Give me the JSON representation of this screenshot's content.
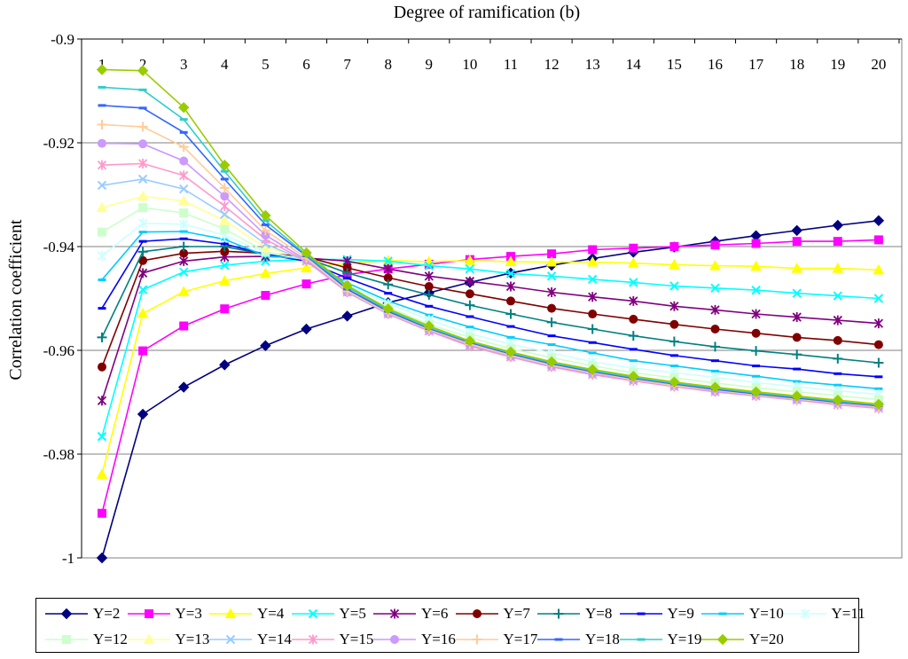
{
  "chart_data": {
    "type": "line",
    "title": "Degree of ramification (b)",
    "xlabel": "Degree of ramification (b)",
    "ylabel": "Correlation coefficient",
    "categories": [
      "1",
      "2",
      "3",
      "4",
      "5",
      "6",
      "7",
      "8",
      "9",
      "10",
      "11",
      "12",
      "13",
      "14",
      "15",
      "16",
      "17",
      "18",
      "19",
      "20"
    ],
    "ylim": [
      -1,
      -0.9
    ],
    "y_ticks": [
      "-0.9",
      "-0.92",
      "-0.94",
      "-0.96",
      "-0.98",
      "-1"
    ],
    "x_axis_position": "top",
    "grid": true,
    "legend_position": "bottom",
    "series": [
      {
        "name": "Y=2",
        "color": "#000080",
        "marker": "diamond",
        "values": [
          -1.0,
          -0.9723,
          -0.9671,
          -0.9628,
          -0.9591,
          -0.9559,
          -0.9534,
          -0.9508,
          -0.9489,
          -0.9469,
          -0.9451,
          -0.9436,
          -0.9423,
          -0.9411,
          -0.9401,
          -0.939,
          -0.9379,
          -0.9369,
          -0.9359,
          -0.935
        ]
      },
      {
        "name": "Y=3",
        "color": "#FF00FF",
        "marker": "square",
        "values": [
          -0.9914,
          -0.9601,
          -0.9553,
          -0.952,
          -0.9494,
          -0.9472,
          -0.9454,
          -0.9443,
          -0.9434,
          -0.9425,
          -0.9419,
          -0.9414,
          -0.9406,
          -0.9403,
          -0.94,
          -0.9397,
          -0.9394,
          -0.939,
          -0.939,
          -0.9387
        ]
      },
      {
        "name": "Y=4",
        "color": "#FFFF00",
        "marker": "triangle",
        "values": [
          -0.9839,
          -0.9529,
          -0.9487,
          -0.9466,
          -0.9452,
          -0.9441,
          -0.9432,
          -0.9427,
          -0.9429,
          -0.9427,
          -0.9429,
          -0.943,
          -0.943,
          -0.9432,
          -0.9435,
          -0.9437,
          -0.9438,
          -0.9442,
          -0.9442,
          -0.9445
        ]
      },
      {
        "name": "Y=5",
        "color": "#00FFFF",
        "marker": "x",
        "values": [
          -0.9766,
          -0.9483,
          -0.9449,
          -0.9436,
          -0.9428,
          -0.9425,
          -0.9425,
          -0.9428,
          -0.9437,
          -0.9443,
          -0.9452,
          -0.9457,
          -0.9463,
          -0.9469,
          -0.9476,
          -0.948,
          -0.9484,
          -0.949,
          -0.9495,
          -0.95
        ]
      },
      {
        "name": "Y=6",
        "color": "#800080",
        "marker": "star",
        "values": [
          -0.9697,
          -0.9451,
          -0.9428,
          -0.942,
          -0.9419,
          -0.9422,
          -0.9428,
          -0.9443,
          -0.9457,
          -0.9467,
          -0.9477,
          -0.9488,
          -0.9497,
          -0.9505,
          -0.9515,
          -0.9522,
          -0.953,
          -0.9536,
          -0.9542,
          -0.9548
        ]
      },
      {
        "name": "Y=7",
        "color": "#800000",
        "marker": "circle",
        "values": [
          -0.9632,
          -0.9427,
          -0.9413,
          -0.9409,
          -0.9413,
          -0.942,
          -0.9441,
          -0.946,
          -0.9477,
          -0.9491,
          -0.9505,
          -0.9519,
          -0.953,
          -0.954,
          -0.955,
          -0.9559,
          -0.9567,
          -0.9575,
          -0.9581,
          -0.9589
        ]
      },
      {
        "name": "Y=8",
        "color": "#008080",
        "marker": "plus",
        "values": [
          -0.9575,
          -0.941,
          -0.94,
          -0.94,
          -0.9415,
          -0.9422,
          -0.9451,
          -0.9473,
          -0.9493,
          -0.9513,
          -0.953,
          -0.9546,
          -0.9559,
          -0.9572,
          -0.9583,
          -0.9593,
          -0.9601,
          -0.9608,
          -0.9616,
          -0.9624
        ]
      },
      {
        "name": "Y=9",
        "color": "#0000FF",
        "marker": "dash",
        "values": [
          -0.9519,
          -0.939,
          -0.9385,
          -0.9395,
          -0.9415,
          -0.9428,
          -0.9461,
          -0.949,
          -0.9515,
          -0.9535,
          -0.9554,
          -0.9572,
          -0.9585,
          -0.9598,
          -0.961,
          -0.962,
          -0.963,
          -0.9636,
          -0.9645,
          -0.9651
        ]
      },
      {
        "name": "Y=10",
        "color": "#00CCFF",
        "marker": "dash",
        "values": [
          -0.9464,
          -0.9372,
          -0.9371,
          -0.9386,
          -0.9418,
          -0.9424,
          -0.947,
          -0.9505,
          -0.9532,
          -0.9555,
          -0.9575,
          -0.9589,
          -0.9605,
          -0.962,
          -0.963,
          -0.964,
          -0.965,
          -0.966,
          -0.9667,
          -0.9674
        ]
      },
      {
        "name": "Y=11",
        "color": "#CCFFFF",
        "marker": "star",
        "values": [
          -0.9418,
          -0.9355,
          -0.9357,
          -0.9378,
          -0.9412,
          -0.9424,
          -0.9474,
          -0.951,
          -0.9541,
          -0.9568,
          -0.9588,
          -0.9605,
          -0.9622,
          -0.9634,
          -0.9643,
          -0.9652,
          -0.9662,
          -0.967,
          -0.9678,
          -0.9685
        ]
      },
      {
        "name": "Y=12",
        "color": "#CCFFCC",
        "marker": "square",
        "values": [
          -0.9372,
          -0.9325,
          -0.9335,
          -0.9366,
          -0.941,
          -0.9426,
          -0.9478,
          -0.9517,
          -0.955,
          -0.9575,
          -0.9597,
          -0.9614,
          -0.963,
          -0.9643,
          -0.9653,
          -0.9663,
          -0.9672,
          -0.968,
          -0.9687,
          -0.9695
        ]
      },
      {
        "name": "Y=13",
        "color": "#FFFF99",
        "marker": "triangle",
        "values": [
          -0.9325,
          -0.9303,
          -0.9312,
          -0.935,
          -0.9402,
          -0.9422,
          -0.9482,
          -0.9522,
          -0.9556,
          -0.9583,
          -0.9604,
          -0.9622,
          -0.9638,
          -0.9651,
          -0.9661,
          -0.967,
          -0.9679,
          -0.9687,
          -0.9695,
          -0.9702
        ]
      },
      {
        "name": "Y=14",
        "color": "#99CCFF",
        "marker": "x",
        "values": [
          -0.9282,
          -0.927,
          -0.9289,
          -0.9338,
          -0.9395,
          -0.9428,
          -0.9485,
          -0.9527,
          -0.9562,
          -0.9589,
          -0.961,
          -0.9628,
          -0.9643,
          -0.9656,
          -0.9667,
          -0.9676,
          -0.9685,
          -0.9693,
          -0.9701,
          -0.9708
        ]
      },
      {
        "name": "Y=15",
        "color": "#FF99CC",
        "marker": "star",
        "values": [
          -0.9243,
          -0.924,
          -0.9263,
          -0.9322,
          -0.9386,
          -0.9428,
          -0.9488,
          -0.953,
          -0.9563,
          -0.9592,
          -0.9613,
          -0.9632,
          -0.9647,
          -0.9659,
          -0.967,
          -0.968,
          -0.9688,
          -0.9696,
          -0.9705,
          -0.9712
        ]
      },
      {
        "name": "Y=16",
        "color": "#CC99FF",
        "marker": "circle",
        "values": [
          -0.9201,
          -0.9202,
          -0.9235,
          -0.9303,
          -0.9378,
          -0.9426,
          -0.9488,
          -0.953,
          -0.9562,
          -0.959,
          -0.9612,
          -0.9631,
          -0.9645,
          -0.9657,
          -0.9669,
          -0.9679,
          -0.9687,
          -0.9695,
          -0.9702,
          -0.971
        ]
      },
      {
        "name": "Y=17",
        "color": "#FFCC99",
        "marker": "plus",
        "values": [
          -0.9165,
          -0.9169,
          -0.9208,
          -0.9287,
          -0.9369,
          -0.9422,
          -0.9486,
          -0.9528,
          -0.956,
          -0.9588,
          -0.961,
          -0.9629,
          -0.9643,
          -0.9656,
          -0.9668,
          -0.9677,
          -0.9686,
          -0.9694,
          -0.9701,
          -0.9709
        ]
      },
      {
        "name": "Y=18",
        "color": "#3366FF",
        "marker": "dash",
        "values": [
          -0.9128,
          -0.9133,
          -0.918,
          -0.927,
          -0.9358,
          -0.9418,
          -0.9482,
          -0.9525,
          -0.9558,
          -0.9585,
          -0.9607,
          -0.9626,
          -0.9641,
          -0.9654,
          -0.9665,
          -0.9675,
          -0.9684,
          -0.9692,
          -0.97,
          -0.9707
        ]
      },
      {
        "name": "Y=19",
        "color": "#33CCCC",
        "marker": "dash",
        "values": [
          -0.9093,
          -0.9098,
          -0.9155,
          -0.9255,
          -0.935,
          -0.9416,
          -0.9478,
          -0.9522,
          -0.9556,
          -0.9583,
          -0.9605,
          -0.9624,
          -0.9639,
          -0.9652,
          -0.9663,
          -0.9673,
          -0.9682,
          -0.969,
          -0.9698,
          -0.9705
        ]
      },
      {
        "name": "Y=20",
        "color": "#99CC00",
        "marker": "diamond",
        "values": [
          -0.9059,
          -0.9061,
          -0.9132,
          -0.9243,
          -0.934,
          -0.9412,
          -0.9475,
          -0.952,
          -0.9553,
          -0.9582,
          -0.9603,
          -0.9622,
          -0.9637,
          -0.965,
          -0.9661,
          -0.9671,
          -0.968,
          -0.9688,
          -0.9696,
          -0.9704
        ]
      }
    ]
  }
}
